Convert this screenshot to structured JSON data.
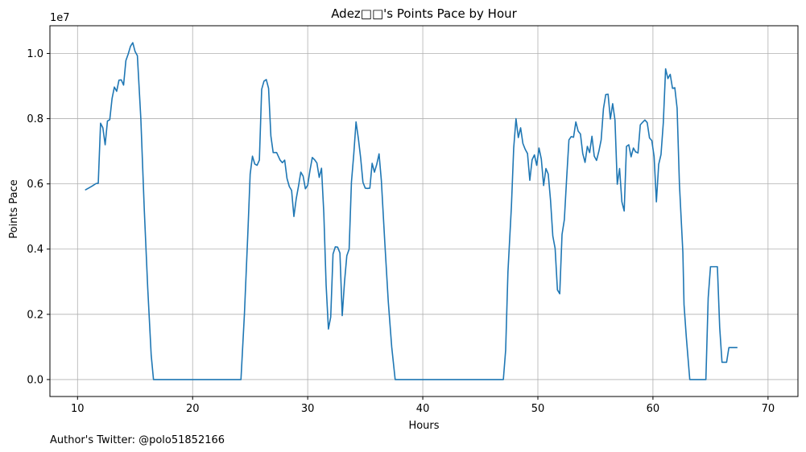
{
  "footer": {
    "credit": "Author's Twitter: @polo51852166"
  },
  "chart_data": {
    "type": "line",
    "title": "Adez□□'s Points Pace by Hour",
    "xlabel": "Hours",
    "ylabel": "Points Pace",
    "y_offset_label": "1e7",
    "xlim": [
      7.6,
      72.6
    ],
    "ylim": [
      -520000,
      10850000
    ],
    "xticks": [
      10,
      20,
      30,
      40,
      50,
      60,
      70
    ],
    "xtick_labels": [
      "10",
      "20",
      "30",
      "40",
      "50",
      "60",
      "70"
    ],
    "yticks": [
      0,
      2000000,
      4000000,
      6000000,
      8000000,
      10000000
    ],
    "ytick_labels": [
      "0.0",
      "0.2",
      "0.4",
      "0.6",
      "0.8",
      "1.0"
    ],
    "grid": true,
    "line_color": "#1f77b4",
    "series": [
      {
        "name": "",
        "points": [
          [
            10.7,
            5820000
          ],
          [
            11.0,
            5880000
          ],
          [
            11.3,
            5940000
          ],
          [
            11.6,
            6010000
          ],
          [
            11.8,
            6020000
          ],
          [
            12.0,
            7860000
          ],
          [
            12.2,
            7720000
          ],
          [
            12.4,
            7200000
          ],
          [
            12.6,
            7930000
          ],
          [
            12.8,
            7970000
          ],
          [
            13.0,
            8620000
          ],
          [
            13.2,
            8970000
          ],
          [
            13.4,
            8840000
          ],
          [
            13.6,
            9180000
          ],
          [
            13.8,
            9190000
          ],
          [
            14.0,
            9030000
          ],
          [
            14.2,
            9780000
          ],
          [
            14.4,
            9980000
          ],
          [
            14.6,
            10220000
          ],
          [
            14.8,
            10330000
          ],
          [
            15.0,
            10060000
          ],
          [
            15.2,
            9930000
          ],
          [
            15.5,
            8000000
          ],
          [
            15.8,
            5200000
          ],
          [
            16.1,
            2800000
          ],
          [
            16.4,
            750000
          ],
          [
            16.6,
            0
          ],
          [
            20.0,
            0
          ],
          [
            24.2,
            0
          ],
          [
            24.5,
            2000000
          ],
          [
            24.8,
            4500000
          ],
          [
            25.0,
            6300000
          ],
          [
            25.2,
            6850000
          ],
          [
            25.4,
            6610000
          ],
          [
            25.6,
            6570000
          ],
          [
            25.8,
            6730000
          ],
          [
            26.0,
            8900000
          ],
          [
            26.2,
            9150000
          ],
          [
            26.4,
            9200000
          ],
          [
            26.6,
            8930000
          ],
          [
            26.8,
            7470000
          ],
          [
            27.0,
            6960000
          ],
          [
            27.3,
            6960000
          ],
          [
            27.6,
            6730000
          ],
          [
            27.8,
            6650000
          ],
          [
            28.0,
            6730000
          ],
          [
            28.2,
            6170000
          ],
          [
            28.4,
            5920000
          ],
          [
            28.6,
            5800000
          ],
          [
            28.8,
            5000000
          ],
          [
            29.0,
            5540000
          ],
          [
            29.2,
            5930000
          ],
          [
            29.4,
            6360000
          ],
          [
            29.6,
            6240000
          ],
          [
            29.8,
            5850000
          ],
          [
            30.0,
            5960000
          ],
          [
            30.2,
            6420000
          ],
          [
            30.4,
            6810000
          ],
          [
            30.6,
            6740000
          ],
          [
            30.8,
            6640000
          ],
          [
            31.0,
            6200000
          ],
          [
            31.2,
            6480000
          ],
          [
            31.4,
            5100000
          ],
          [
            31.6,
            2900000
          ],
          [
            31.8,
            1550000
          ],
          [
            32.0,
            1920000
          ],
          [
            32.2,
            3850000
          ],
          [
            32.4,
            4070000
          ],
          [
            32.6,
            4060000
          ],
          [
            32.8,
            3880000
          ],
          [
            33.0,
            1960000
          ],
          [
            33.2,
            3000000
          ],
          [
            33.4,
            3800000
          ],
          [
            33.6,
            4000000
          ],
          [
            33.8,
            6050000
          ],
          [
            34.0,
            6900000
          ],
          [
            34.2,
            7900000
          ],
          [
            34.4,
            7400000
          ],
          [
            34.6,
            6800000
          ],
          [
            34.8,
            6050000
          ],
          [
            35.0,
            5870000
          ],
          [
            35.2,
            5860000
          ],
          [
            35.4,
            5870000
          ],
          [
            35.6,
            6630000
          ],
          [
            35.8,
            6360000
          ],
          [
            36.0,
            6600000
          ],
          [
            36.2,
            6920000
          ],
          [
            36.4,
            6100000
          ],
          [
            36.7,
            4200000
          ],
          [
            37.0,
            2400000
          ],
          [
            37.3,
            1000000
          ],
          [
            37.6,
            0
          ],
          [
            40.0,
            0
          ],
          [
            45.0,
            0
          ],
          [
            47.0,
            0
          ],
          [
            47.2,
            900000
          ],
          [
            47.4,
            3300000
          ],
          [
            47.7,
            5300000
          ],
          [
            47.9,
            7100000
          ],
          [
            48.1,
            8000000
          ],
          [
            48.3,
            7420000
          ],
          [
            48.5,
            7720000
          ],
          [
            48.7,
            7240000
          ],
          [
            48.9,
            7060000
          ],
          [
            49.1,
            6930000
          ],
          [
            49.3,
            6110000
          ],
          [
            49.5,
            6740000
          ],
          [
            49.7,
            6890000
          ],
          [
            49.9,
            6570000
          ],
          [
            50.1,
            7100000
          ],
          [
            50.3,
            6760000
          ],
          [
            50.5,
            5950000
          ],
          [
            50.7,
            6470000
          ],
          [
            50.9,
            6300000
          ],
          [
            51.1,
            5500000
          ],
          [
            51.3,
            4400000
          ],
          [
            51.5,
            4020000
          ],
          [
            51.7,
            2750000
          ],
          [
            51.9,
            2630000
          ],
          [
            52.1,
            4450000
          ],
          [
            52.3,
            4900000
          ],
          [
            52.5,
            6160000
          ],
          [
            52.7,
            7350000
          ],
          [
            52.9,
            7450000
          ],
          [
            53.1,
            7430000
          ],
          [
            53.3,
            7900000
          ],
          [
            53.5,
            7620000
          ],
          [
            53.7,
            7530000
          ],
          [
            53.9,
            6930000
          ],
          [
            54.1,
            6660000
          ],
          [
            54.3,
            7150000
          ],
          [
            54.5,
            6960000
          ],
          [
            54.7,
            7460000
          ],
          [
            54.9,
            6850000
          ],
          [
            55.1,
            6720000
          ],
          [
            55.3,
            7000000
          ],
          [
            55.5,
            7350000
          ],
          [
            55.7,
            8310000
          ],
          [
            55.9,
            8740000
          ],
          [
            56.1,
            8750000
          ],
          [
            56.3,
            7990000
          ],
          [
            56.5,
            8460000
          ],
          [
            56.7,
            7960000
          ],
          [
            56.9,
            5990000
          ],
          [
            57.1,
            6470000
          ],
          [
            57.3,
            5450000
          ],
          [
            57.5,
            5170000
          ],
          [
            57.7,
            7150000
          ],
          [
            57.9,
            7200000
          ],
          [
            58.1,
            6830000
          ],
          [
            58.3,
            7100000
          ],
          [
            58.5,
            6980000
          ],
          [
            58.7,
            6950000
          ],
          [
            58.9,
            7810000
          ],
          [
            59.1,
            7890000
          ],
          [
            59.3,
            7960000
          ],
          [
            59.5,
            7880000
          ],
          [
            59.7,
            7410000
          ],
          [
            59.9,
            7330000
          ],
          [
            60.1,
            6840000
          ],
          [
            60.3,
            5450000
          ],
          [
            60.5,
            6600000
          ],
          [
            60.7,
            6900000
          ],
          [
            60.9,
            7870000
          ],
          [
            61.1,
            9530000
          ],
          [
            61.3,
            9230000
          ],
          [
            61.5,
            9360000
          ],
          [
            61.7,
            8930000
          ],
          [
            61.9,
            8950000
          ],
          [
            62.1,
            8320000
          ],
          [
            62.3,
            6000000
          ],
          [
            62.6,
            3900000
          ],
          [
            62.7,
            2300000
          ],
          [
            62.9,
            1300000
          ],
          [
            63.2,
            0
          ],
          [
            64.2,
            0
          ],
          [
            64.4,
            0
          ],
          [
            64.6,
            0
          ],
          [
            64.8,
            2500000
          ],
          [
            65.0,
            3460000
          ],
          [
            65.2,
            3460000
          ],
          [
            65.4,
            3460000
          ],
          [
            65.6,
            3460000
          ],
          [
            65.8,
            1600000
          ],
          [
            66.0,
            530000
          ],
          [
            66.2,
            530000
          ],
          [
            66.4,
            530000
          ],
          [
            66.6,
            980000
          ],
          [
            66.8,
            980000
          ],
          [
            67.0,
            980000
          ],
          [
            67.3,
            980000
          ]
        ]
      }
    ]
  }
}
